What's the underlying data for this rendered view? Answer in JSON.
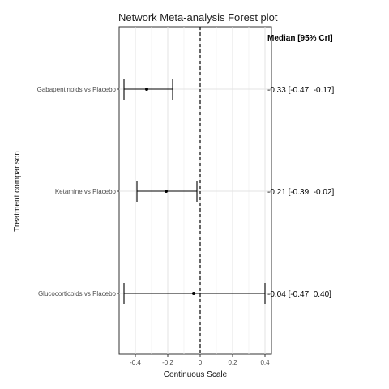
{
  "chart_data": {
    "type": "forest",
    "title": "Network Meta-analysis Forest plot",
    "xlabel": "Continuous Scale",
    "ylabel": "Treatment comparison",
    "xlim": [
      -0.5,
      0.44
    ],
    "xticks": [
      -0.4,
      -0.2,
      0,
      0.2,
      0.4
    ],
    "xtick_labels": [
      "-0.4",
      "-0.2",
      "0",
      "0.2",
      "0.4"
    ],
    "reference_line": 0,
    "grid": true,
    "estimate_header": "Median [95% CrI]",
    "rows": [
      {
        "label": "Gabapentinoids vs Placebo",
        "median": -0.33,
        "lower": -0.47,
        "upper": -0.17,
        "text": "-0.33 [-0.47, -0.17]"
      },
      {
        "label": "Ketamine vs Placebo",
        "median": -0.21,
        "lower": -0.39,
        "upper": -0.02,
        "text": "-0.21 [-0.39, -0.02]"
      },
      {
        "label": "Glucocorticoids vs Placebo",
        "median": -0.04,
        "lower": -0.47,
        "upper": 0.4,
        "text": "-0.04 [-0.47, 0.40]"
      }
    ]
  }
}
